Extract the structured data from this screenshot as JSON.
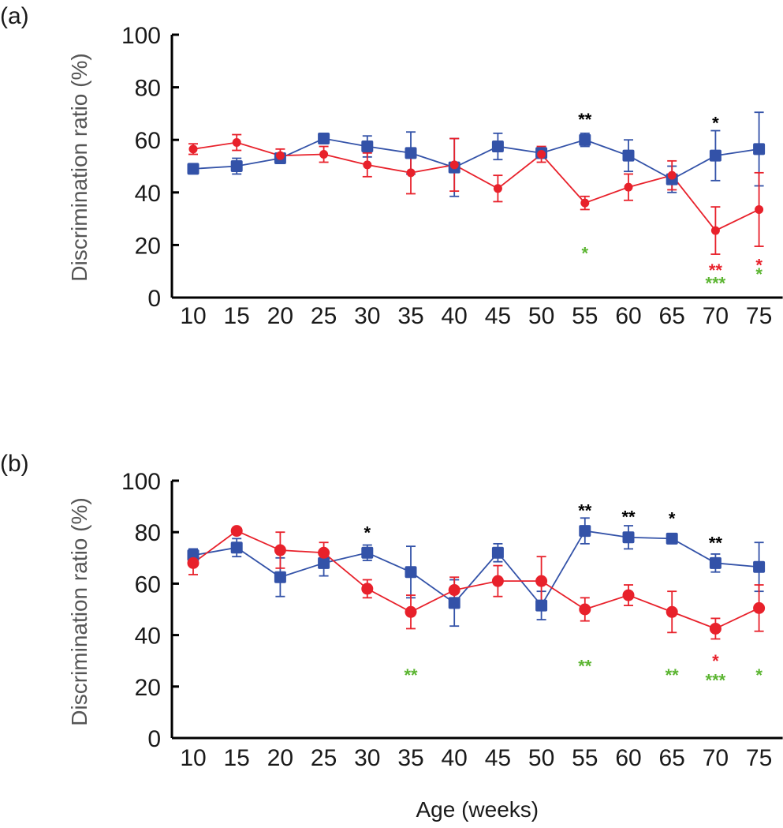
{
  "chart_data": [
    {
      "type": "line",
      "panel_label": "(a)",
      "xlabel": "",
      "ylabel": "Discrimination ratio (%)",
      "x": [
        10,
        15,
        20,
        25,
        30,
        35,
        40,
        45,
        50,
        55,
        60,
        65,
        70,
        75
      ],
      "xtick_labels": [
        "10",
        "15",
        "20",
        "25",
        "30",
        "35",
        "40",
        "45",
        "50",
        "55",
        "60",
        "65",
        "70",
        "75"
      ],
      "ylim": [
        0,
        100
      ],
      "yticks": [
        0,
        20,
        40,
        60,
        80,
        100
      ],
      "ytick_labels": [
        "0",
        "20",
        "40",
        "60",
        "80",
        "100"
      ],
      "grid": false,
      "legend": "none",
      "series": [
        {
          "name": "blue-square-series",
          "color": "#3352a8",
          "marker": "square",
          "values": [
            49,
            50,
            53,
            60.5,
            57.5,
            55,
            49.5,
            57.5,
            55,
            60,
            54,
            45,
            54,
            56.5
          ],
          "errors": [
            1.5,
            3,
            1.5,
            1.5,
            4,
            8,
            11,
            5,
            1.5,
            2.5,
            6,
            5,
            9.5,
            14
          ]
        },
        {
          "name": "red-circle-series",
          "color": "#e8212b",
          "marker": "circle",
          "values": [
            56.5,
            59,
            54,
            54.5,
            50.5,
            47.5,
            50.5,
            41.5,
            54.5,
            36,
            42,
            46.5,
            25.5,
            33.5
          ],
          "errors": [
            2,
            3,
            2.5,
            3,
            4.5,
            8,
            10,
            5,
            3,
            2.5,
            5,
            5.5,
            9,
            14
          ]
        }
      ],
      "annotations": [
        {
          "x": 55,
          "text": "**",
          "color": "#000000",
          "position": "above"
        },
        {
          "x": 70,
          "text": "*",
          "color": "#000000",
          "position": "above"
        },
        {
          "x": 55,
          "text": "*",
          "color": "#5bb531",
          "position": "below",
          "row": 1
        },
        {
          "x": 70,
          "text": "**",
          "color": "#e8212b",
          "position": "below",
          "row": 0
        },
        {
          "x": 70,
          "text": "***",
          "color": "#5bb531",
          "position": "below",
          "row": 1
        },
        {
          "x": 75,
          "text": "*",
          "color": "#e8212b",
          "position": "below",
          "row": 0
        },
        {
          "x": 75,
          "text": "*",
          "color": "#5bb531",
          "position": "below",
          "row": 1
        }
      ]
    },
    {
      "type": "line",
      "panel_label": "(b)",
      "xlabel": "Age (weeks)",
      "ylabel": "Discrimination ratio (%)",
      "x": [
        10,
        15,
        20,
        25,
        30,
        35,
        40,
        45,
        50,
        55,
        60,
        65,
        70,
        75
      ],
      "xtick_labels": [
        "10",
        "15",
        "20",
        "25",
        "30",
        "35",
        "40",
        "45",
        "50",
        "55",
        "60",
        "65",
        "70",
        "75"
      ],
      "ylim": [
        0,
        100
      ],
      "yticks": [
        0,
        20,
        40,
        60,
        80,
        100
      ],
      "ytick_labels": [
        "0",
        "20",
        "40",
        "60",
        "80",
        "100"
      ],
      "grid": false,
      "legend": "none",
      "series": [
        {
          "name": "blue-square-series",
          "color": "#3352a8",
          "marker": "square",
          "values": [
            71,
            74,
            62.5,
            68,
            72,
            64.5,
            52.5,
            72,
            51.5,
            80.5,
            78,
            77.5,
            68,
            66.5
          ],
          "errors": [
            2.5,
            3.5,
            7.5,
            5,
            3,
            10,
            9,
            3.5,
            5.5,
            5,
            4.5,
            1,
            3.5,
            9.5
          ]
        },
        {
          "name": "red-circle-series",
          "color": "#e8212b",
          "marker": "circle",
          "values": [
            68,
            80.5,
            73,
            72,
            58,
            49,
            57.5,
            61,
            61,
            50,
            55.5,
            49,
            42.5,
            50.5
          ],
          "errors": [
            4.5,
            1,
            7,
            4,
            3.5,
            6.5,
            5,
            6,
            9.5,
            4.5,
            4,
            8,
            4,
            9
          ]
        }
      ],
      "annotations": [
        {
          "x": 30,
          "text": "*",
          "color": "#000000",
          "position": "above"
        },
        {
          "x": 55,
          "text": "**",
          "color": "#000000",
          "position": "above"
        },
        {
          "x": 60,
          "text": "**",
          "color": "#000000",
          "position": "above"
        },
        {
          "x": 65,
          "text": "*",
          "color": "#000000",
          "position": "above"
        },
        {
          "x": 70,
          "text": "**",
          "color": "#000000",
          "position": "above"
        },
        {
          "x": 35,
          "text": "**",
          "color": "#5bb531",
          "position": "below",
          "row": 1
        },
        {
          "x": 55,
          "text": "**",
          "color": "#5bb531",
          "position": "below",
          "row": 1
        },
        {
          "x": 65,
          "text": "**",
          "color": "#5bb531",
          "position": "below",
          "row": 1
        },
        {
          "x": 70,
          "text": "*",
          "color": "#e8212b",
          "position": "below",
          "row": 0
        },
        {
          "x": 70,
          "text": "***",
          "color": "#5bb531",
          "position": "below",
          "row": 1
        },
        {
          "x": 75,
          "text": "*",
          "color": "#5bb531",
          "position": "below",
          "row": 1
        }
      ]
    }
  ]
}
